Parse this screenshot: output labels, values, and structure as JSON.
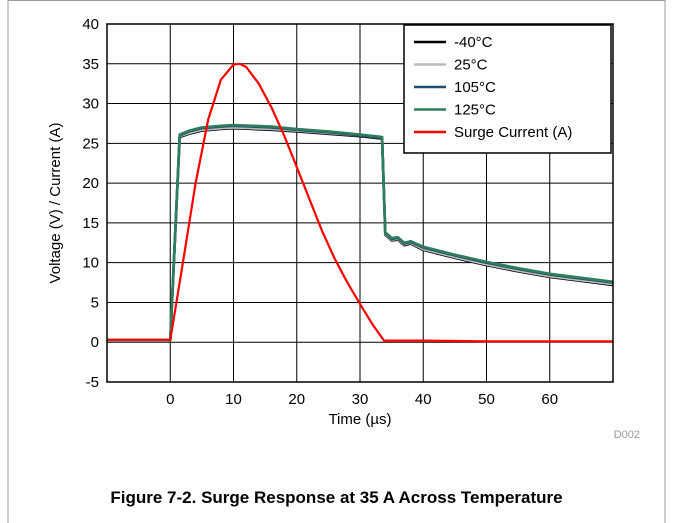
{
  "caption": "Figure 7-2. Surge Response at 35 A Across Temperature",
  "figure_code": "D002",
  "chart_data": {
    "type": "line",
    "xlabel": "Time (µs)",
    "ylabel": "Voltage (V) / Current (A)",
    "xlim": [
      -10,
      70
    ],
    "ylim": [
      -5,
      40
    ],
    "xticks": [
      0,
      10,
      20,
      30,
      40,
      50,
      60
    ],
    "yticks": [
      -5,
      0,
      5,
      10,
      15,
      20,
      25,
      30,
      35,
      40
    ],
    "grid": true,
    "legend_position": "top-right",
    "series": [
      {
        "name": "-40°C",
        "color": "#000000",
        "points": [
          [
            -10,
            0.3
          ],
          [
            0,
            0.3
          ],
          [
            1.5,
            25.8
          ],
          [
            3,
            26.2
          ],
          [
            5,
            26.6
          ],
          [
            8,
            26.8
          ],
          [
            10,
            26.9
          ],
          [
            13,
            26.8
          ],
          [
            16,
            26.7
          ],
          [
            20,
            26.5
          ],
          [
            25,
            26.2
          ],
          [
            30,
            25.9
          ],
          [
            33.5,
            25.6
          ],
          [
            34,
            13.5
          ],
          [
            35,
            12.8
          ],
          [
            36,
            12.9
          ],
          [
            37,
            12.2
          ],
          [
            38,
            12.4
          ],
          [
            40,
            11.6
          ],
          [
            45,
            10.6
          ],
          [
            50,
            9.7
          ],
          [
            55,
            8.9
          ],
          [
            60,
            8.2
          ],
          [
            65,
            7.7
          ],
          [
            70,
            7.2
          ]
        ]
      },
      {
        "name": "25°C",
        "color": "#bbbbbb",
        "points": [
          [
            -10,
            0.3
          ],
          [
            0,
            0.3
          ],
          [
            1.5,
            25.9
          ],
          [
            3,
            26.3
          ],
          [
            5,
            26.7
          ],
          [
            8,
            26.9
          ],
          [
            10,
            27.0
          ],
          [
            13,
            26.9
          ],
          [
            16,
            26.8
          ],
          [
            20,
            26.6
          ],
          [
            25,
            26.3
          ],
          [
            30,
            26.0
          ],
          [
            33.5,
            25.7
          ],
          [
            34,
            13.6
          ],
          [
            35,
            12.9
          ],
          [
            36,
            13.0
          ],
          [
            37,
            12.3
          ],
          [
            38,
            12.5
          ],
          [
            40,
            11.7
          ],
          [
            45,
            10.7
          ],
          [
            50,
            9.8
          ],
          [
            55,
            9.0
          ],
          [
            60,
            8.3
          ],
          [
            65,
            7.8
          ],
          [
            70,
            7.3
          ]
        ]
      },
      {
        "name": "105°C",
        "color": "#1f4e6e",
        "points": [
          [
            -10,
            0.3
          ],
          [
            0,
            0.3
          ],
          [
            1.5,
            26.0
          ],
          [
            3,
            26.5
          ],
          [
            5,
            26.9
          ],
          [
            8,
            27.1
          ],
          [
            10,
            27.2
          ],
          [
            13,
            27.1
          ],
          [
            16,
            27.0
          ],
          [
            20,
            26.7
          ],
          [
            25,
            26.4
          ],
          [
            30,
            26.0
          ],
          [
            33.5,
            25.7
          ],
          [
            34,
            13.7
          ],
          [
            35,
            13.0
          ],
          [
            36,
            13.1
          ],
          [
            37,
            12.4
          ],
          [
            38,
            12.6
          ],
          [
            40,
            11.9
          ],
          [
            45,
            10.9
          ],
          [
            50,
            10.0
          ],
          [
            55,
            9.2
          ],
          [
            60,
            8.5
          ],
          [
            65,
            8.0
          ],
          [
            70,
            7.5
          ]
        ]
      },
      {
        "name": "125°C",
        "color": "#2e7d5b",
        "points": [
          [
            -10,
            0.3
          ],
          [
            0,
            0.3
          ],
          [
            1.5,
            26.1
          ],
          [
            3,
            26.6
          ],
          [
            5,
            27.0
          ],
          [
            8,
            27.2
          ],
          [
            10,
            27.3
          ],
          [
            13,
            27.2
          ],
          [
            16,
            27.1
          ],
          [
            20,
            26.8
          ],
          [
            25,
            26.5
          ],
          [
            30,
            26.1
          ],
          [
            33.5,
            25.8
          ],
          [
            34,
            13.8
          ],
          [
            35,
            13.1
          ],
          [
            36,
            13.2
          ],
          [
            37,
            12.5
          ],
          [
            38,
            12.7
          ],
          [
            40,
            12.0
          ],
          [
            45,
            11.0
          ],
          [
            50,
            10.1
          ],
          [
            55,
            9.3
          ],
          [
            60,
            8.6
          ],
          [
            65,
            8.1
          ],
          [
            70,
            7.6
          ]
        ]
      },
      {
        "name": "Surge Current (A)",
        "color": "#ff0000",
        "points": [
          [
            -10,
            0.3
          ],
          [
            0,
            0.3
          ],
          [
            2,
            10
          ],
          [
            4,
            20
          ],
          [
            6,
            28
          ],
          [
            8,
            33
          ],
          [
            10,
            34.9
          ],
          [
            11,
            35
          ],
          [
            12,
            34.6
          ],
          [
            14,
            32.5
          ],
          [
            16,
            29.5
          ],
          [
            18,
            26
          ],
          [
            20,
            22
          ],
          [
            22,
            18
          ],
          [
            24,
            14
          ],
          [
            26,
            10.5
          ],
          [
            28,
            7.5
          ],
          [
            30,
            4.8
          ],
          [
            32,
            2.2
          ],
          [
            33.8,
            0.2
          ],
          [
            40,
            0.2
          ],
          [
            50,
            0.1
          ],
          [
            60,
            0.1
          ],
          [
            70,
            0.1
          ]
        ]
      }
    ]
  }
}
